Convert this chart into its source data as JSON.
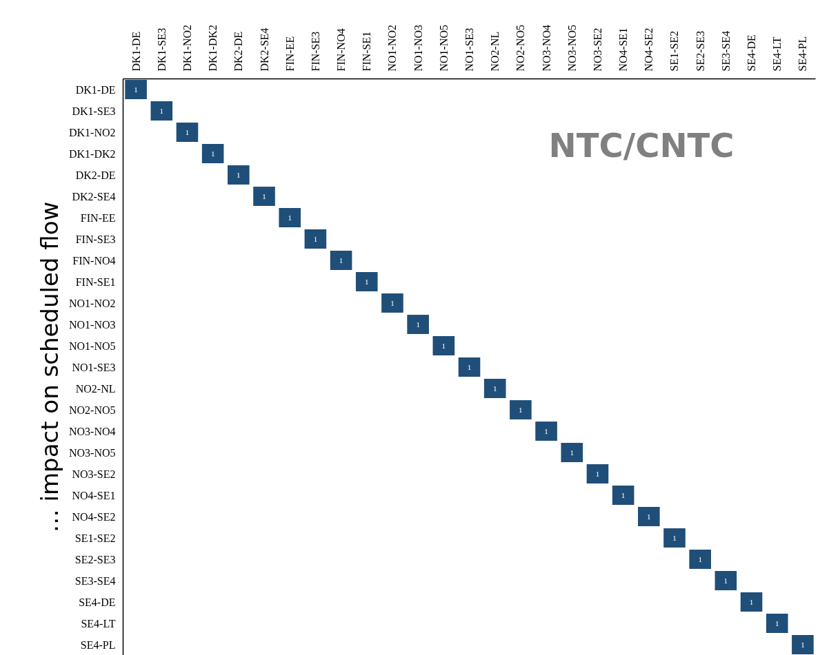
{
  "chart_data": {
    "type": "heatmap",
    "ylabel": "… impact on scheduled flow",
    "annotations": [
      "NTC/CNTC"
    ],
    "color": "#1f4e79",
    "data_labels": true,
    "categories": [
      "DK1-DE",
      "DK1-SE3",
      "DK1-NO2",
      "DK1-DK2",
      "DK2-DE",
      "DK2-SE4",
      "FIN-EE",
      "FIN-SE3",
      "FIN-NO4",
      "FIN-SE1",
      "NO1-NO2",
      "NO1-NO3",
      "NO1-NO5",
      "NO1-SE3",
      "NO2-NL",
      "NO2-NO5",
      "NO3-NO4",
      "NO3-NO5",
      "NO3-SE2",
      "NO4-SE1",
      "NO4-SE2",
      "SE1-SE2",
      "SE2-SE3",
      "SE3-SE4",
      "SE4-DE",
      "SE4-LT",
      "SE4-PL"
    ],
    "y_categories": [
      "DK1-DE",
      "DK1-SE3",
      "DK1-NO2",
      "DK1-DK2",
      "DK2-DE",
      "DK2-SE4",
      "FIN-EE",
      "FIN-SE3",
      "FIN-NO4",
      "FIN-SE1",
      "NO1-NO2",
      "NO1-NO3",
      "NO1-NO5",
      "NO1-SE3",
      "NO2-NL",
      "NO2-NO5",
      "NO3-NO4",
      "NO3-NO5",
      "NO3-SE2",
      "NO4-SE1",
      "NO4-SE2",
      "SE1-SE2",
      "SE2-SE3",
      "SE3-SE4",
      "SE4-DE",
      "SE4-LT",
      "SE4-PL"
    ],
    "cells": [
      [
        1,
        null,
        null,
        null,
        null,
        null,
        null,
        null,
        null,
        null,
        null,
        null,
        null,
        null,
        null,
        null,
        null,
        null,
        null,
        null,
        null,
        null,
        null,
        null,
        null,
        null,
        null
      ],
      [
        null,
        1,
        null,
        null,
        null,
        null,
        null,
        null,
        null,
        null,
        null,
        null,
        null,
        null,
        null,
        null,
        null,
        null,
        null,
        null,
        null,
        null,
        null,
        null,
        null,
        null,
        null
      ],
      [
        null,
        null,
        1,
        null,
        null,
        null,
        null,
        null,
        null,
        null,
        null,
        null,
        null,
        null,
        null,
        null,
        null,
        null,
        null,
        null,
        null,
        null,
        null,
        null,
        null,
        null,
        null
      ],
      [
        null,
        null,
        null,
        1,
        null,
        null,
        null,
        null,
        null,
        null,
        null,
        null,
        null,
        null,
        null,
        null,
        null,
        null,
        null,
        null,
        null,
        null,
        null,
        null,
        null,
        null,
        null
      ],
      [
        null,
        null,
        null,
        null,
        1,
        null,
        null,
        null,
        null,
        null,
        null,
        null,
        null,
        null,
        null,
        null,
        null,
        null,
        null,
        null,
        null,
        null,
        null,
        null,
        null,
        null,
        null
      ],
      [
        null,
        null,
        null,
        null,
        null,
        1,
        null,
        null,
        null,
        null,
        null,
        null,
        null,
        null,
        null,
        null,
        null,
        null,
        null,
        null,
        null,
        null,
        null,
        null,
        null,
        null,
        null
      ],
      [
        null,
        null,
        null,
        null,
        null,
        null,
        1,
        null,
        null,
        null,
        null,
        null,
        null,
        null,
        null,
        null,
        null,
        null,
        null,
        null,
        null,
        null,
        null,
        null,
        null,
        null,
        null
      ],
      [
        null,
        null,
        null,
        null,
        null,
        null,
        null,
        1,
        null,
        null,
        null,
        null,
        null,
        null,
        null,
        null,
        null,
        null,
        null,
        null,
        null,
        null,
        null,
        null,
        null,
        null,
        null
      ],
      [
        null,
        null,
        null,
        null,
        null,
        null,
        null,
        null,
        1,
        null,
        null,
        null,
        null,
        null,
        null,
        null,
        null,
        null,
        null,
        null,
        null,
        null,
        null,
        null,
        null,
        null,
        null
      ],
      [
        null,
        null,
        null,
        null,
        null,
        null,
        null,
        null,
        null,
        1,
        null,
        null,
        null,
        null,
        null,
        null,
        null,
        null,
        null,
        null,
        null,
        null,
        null,
        null,
        null,
        null,
        null
      ],
      [
        null,
        null,
        null,
        null,
        null,
        null,
        null,
        null,
        null,
        null,
        1,
        null,
        null,
        null,
        null,
        null,
        null,
        null,
        null,
        null,
        null,
        null,
        null,
        null,
        null,
        null,
        null
      ],
      [
        null,
        null,
        null,
        null,
        null,
        null,
        null,
        null,
        null,
        null,
        null,
        1,
        null,
        null,
        null,
        null,
        null,
        null,
        null,
        null,
        null,
        null,
        null,
        null,
        null,
        null,
        null
      ],
      [
        null,
        null,
        null,
        null,
        null,
        null,
        null,
        null,
        null,
        null,
        null,
        null,
        1,
        null,
        null,
        null,
        null,
        null,
        null,
        null,
        null,
        null,
        null,
        null,
        null,
        null,
        null
      ],
      [
        null,
        null,
        null,
        null,
        null,
        null,
        null,
        null,
        null,
        null,
        null,
        null,
        null,
        1,
        null,
        null,
        null,
        null,
        null,
        null,
        null,
        null,
        null,
        null,
        null,
        null,
        null
      ],
      [
        null,
        null,
        null,
        null,
        null,
        null,
        null,
        null,
        null,
        null,
        null,
        null,
        null,
        null,
        1,
        null,
        null,
        null,
        null,
        null,
        null,
        null,
        null,
        null,
        null,
        null,
        null
      ],
      [
        null,
        null,
        null,
        null,
        null,
        null,
        null,
        null,
        null,
        null,
        null,
        null,
        null,
        null,
        null,
        1,
        null,
        null,
        null,
        null,
        null,
        null,
        null,
        null,
        null,
        null,
        null
      ],
      [
        null,
        null,
        null,
        null,
        null,
        null,
        null,
        null,
        null,
        null,
        null,
        null,
        null,
        null,
        null,
        null,
        1,
        null,
        null,
        null,
        null,
        null,
        null,
        null,
        null,
        null,
        null
      ],
      [
        null,
        null,
        null,
        null,
        null,
        null,
        null,
        null,
        null,
        null,
        null,
        null,
        null,
        null,
        null,
        null,
        null,
        1,
        null,
        null,
        null,
        null,
        null,
        null,
        null,
        null,
        null
      ],
      [
        null,
        null,
        null,
        null,
        null,
        null,
        null,
        null,
        null,
        null,
        null,
        null,
        null,
        null,
        null,
        null,
        null,
        null,
        1,
        null,
        null,
        null,
        null,
        null,
        null,
        null,
        null
      ],
      [
        null,
        null,
        null,
        null,
        null,
        null,
        null,
        null,
        null,
        null,
        null,
        null,
        null,
        null,
        null,
        null,
        null,
        null,
        null,
        1,
        null,
        null,
        null,
        null,
        null,
        null,
        null
      ],
      [
        null,
        null,
        null,
        null,
        null,
        null,
        null,
        null,
        null,
        null,
        null,
        null,
        null,
        null,
        null,
        null,
        null,
        null,
        null,
        null,
        1,
        null,
        null,
        null,
        null,
        null,
        null
      ],
      [
        null,
        null,
        null,
        null,
        null,
        null,
        null,
        null,
        null,
        null,
        null,
        null,
        null,
        null,
        null,
        null,
        null,
        null,
        null,
        null,
        null,
        1,
        null,
        null,
        null,
        null,
        null
      ],
      [
        null,
        null,
        null,
        null,
        null,
        null,
        null,
        null,
        null,
        null,
        null,
        null,
        null,
        null,
        null,
        null,
        null,
        null,
        null,
        null,
        null,
        null,
        1,
        null,
        null,
        null,
        null
      ],
      [
        null,
        null,
        null,
        null,
        null,
        null,
        null,
        null,
        null,
        null,
        null,
        null,
        null,
        null,
        null,
        null,
        null,
        null,
        null,
        null,
        null,
        null,
        null,
        1,
        null,
        null,
        null
      ],
      [
        null,
        null,
        null,
        null,
        null,
        null,
        null,
        null,
        null,
        null,
        null,
        null,
        null,
        null,
        null,
        null,
        null,
        null,
        null,
        null,
        null,
        null,
        null,
        null,
        1,
        null,
        null
      ],
      [
        null,
        null,
        null,
        null,
        null,
        null,
        null,
        null,
        null,
        null,
        null,
        null,
        null,
        null,
        null,
        null,
        null,
        null,
        null,
        null,
        null,
        null,
        null,
        null,
        null,
        1,
        null
      ],
      [
        null,
        null,
        null,
        null,
        null,
        null,
        null,
        null,
        null,
        null,
        null,
        null,
        null,
        null,
        null,
        null,
        null,
        null,
        null,
        null,
        null,
        null,
        null,
        null,
        null,
        null,
        1
      ]
    ]
  }
}
